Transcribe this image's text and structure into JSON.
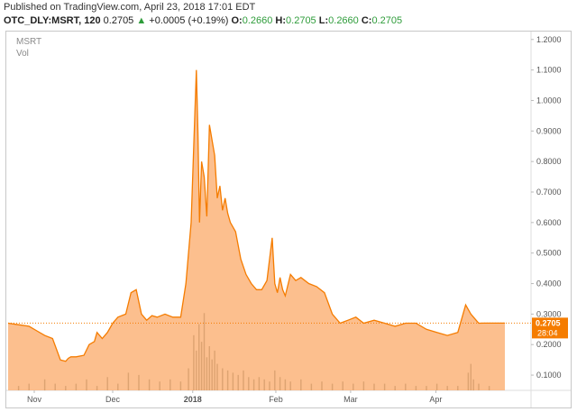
{
  "header": {
    "published": "Published on TradingView.com, April 23, 2018 17:01 EDT",
    "symbol": "OTC_DLY:MSRT, 120",
    "price": "0.2705",
    "change_arrow": "▲",
    "change": "+0.0005 (+0.19%)",
    "o_label": "O:",
    "o_value": "0.2660",
    "h_label": "H:",
    "h_value": "0.2705",
    "l_label": "L:",
    "l_value": "0.2660",
    "c_label": "C:",
    "c_value": "0.2705"
  },
  "legend": {
    "name": "MSRT",
    "vol": "Vol"
  },
  "colors": {
    "line": "#f57c00",
    "fill": "#fbb47a",
    "vol": "#d9a06e",
    "positive": "#2e9c3a",
    "tag_bg": "#f57c00",
    "axis_text": "#555555"
  },
  "chart_data": {
    "type": "area",
    "title": "",
    "ylim": [
      0.05,
      1.22
    ],
    "y_ticks": [
      "1.2000",
      "1.1000",
      "1.0000",
      "0.9000",
      "0.8000",
      "0.7000",
      "0.6000",
      "0.5000",
      "0.4000",
      "0.3000",
      "0.2000",
      "0.1000"
    ],
    "x_labels": [
      {
        "label": "Nov",
        "x": 0.05
      },
      {
        "label": "Dec",
        "x": 0.2
      },
      {
        "label": "2018",
        "x": 0.353
      },
      {
        "label": "Feb",
        "x": 0.512
      },
      {
        "label": "Mar",
        "x": 0.655
      },
      {
        "label": "Apr",
        "x": 0.818
      }
    ],
    "last_price": "0.2705",
    "last_value": 0.2705,
    "countdown": "28:04",
    "series": [
      {
        "x": [
          0,
          0.02,
          0.04,
          0.055,
          0.07,
          0.085,
          0.1,
          0.11,
          0.115,
          0.12,
          0.13,
          0.145,
          0.155,
          0.165,
          0.17,
          0.18,
          0.19,
          0.2,
          0.21,
          0.225,
          0.235,
          0.245,
          0.255,
          0.265,
          0.275,
          0.285,
          0.3,
          0.315,
          0.33,
          0.34,
          0.35,
          0.355,
          0.36,
          0.363,
          0.366,
          0.37,
          0.375,
          0.38,
          0.385,
          0.39,
          0.395,
          0.4,
          0.405,
          0.41,
          0.415,
          0.42,
          0.425,
          0.435,
          0.445,
          0.455,
          0.465,
          0.475,
          0.485,
          0.495,
          0.505,
          0.51,
          0.515,
          0.52,
          0.525,
          0.53,
          0.54,
          0.55,
          0.56,
          0.575,
          0.59,
          0.605,
          0.62,
          0.635,
          0.65,
          0.665,
          0.68,
          0.7,
          0.72,
          0.74,
          0.76,
          0.78,
          0.8,
          0.82,
          0.84,
          0.86,
          0.875,
          0.885,
          0.89,
          0.895,
          0.9,
          0.91,
          0.93,
          0.95
        ],
        "values": [
          0.27,
          0.265,
          0.26,
          0.245,
          0.23,
          0.22,
          0.15,
          0.145,
          0.155,
          0.16,
          0.16,
          0.165,
          0.2,
          0.21,
          0.24,
          0.22,
          0.24,
          0.27,
          0.29,
          0.3,
          0.37,
          0.38,
          0.3,
          0.28,
          0.295,
          0.29,
          0.3,
          0.29,
          0.29,
          0.4,
          0.6,
          0.85,
          1.1,
          0.9,
          0.6,
          0.8,
          0.75,
          0.62,
          0.92,
          0.87,
          0.82,
          0.68,
          0.72,
          0.64,
          0.68,
          0.63,
          0.6,
          0.57,
          0.48,
          0.43,
          0.4,
          0.38,
          0.38,
          0.41,
          0.55,
          0.4,
          0.37,
          0.42,
          0.38,
          0.36,
          0.43,
          0.41,
          0.42,
          0.4,
          0.39,
          0.37,
          0.3,
          0.27,
          0.28,
          0.29,
          0.27,
          0.28,
          0.27,
          0.26,
          0.27,
          0.27,
          0.25,
          0.24,
          0.23,
          0.24,
          0.33,
          0.3,
          0.29,
          0.28,
          0.27,
          0.2705,
          0.2705,
          0.2705
        ]
      }
    ],
    "volume": {
      "x": [
        0.02,
        0.04,
        0.07,
        0.09,
        0.11,
        0.13,
        0.15,
        0.17,
        0.19,
        0.21,
        0.23,
        0.25,
        0.27,
        0.29,
        0.31,
        0.33,
        0.345,
        0.355,
        0.36,
        0.365,
        0.37,
        0.375,
        0.38,
        0.385,
        0.39,
        0.395,
        0.4,
        0.41,
        0.42,
        0.43,
        0.44,
        0.45,
        0.46,
        0.47,
        0.48,
        0.49,
        0.5,
        0.51,
        0.52,
        0.53,
        0.54,
        0.56,
        0.58,
        0.6,
        0.62,
        0.64,
        0.66,
        0.68,
        0.7,
        0.72,
        0.74,
        0.76,
        0.78,
        0.8,
        0.82,
        0.84,
        0.86,
        0.88,
        0.885,
        0.89,
        0.9,
        0.92
      ],
      "values": [
        0.02,
        0.03,
        0.05,
        0.03,
        0.02,
        0.03,
        0.05,
        0.02,
        0.06,
        0.03,
        0.08,
        0.07,
        0.05,
        0.04,
        0.05,
        0.04,
        0.1,
        0.25,
        0.18,
        0.3,
        0.22,
        0.35,
        0.15,
        0.2,
        0.14,
        0.18,
        0.12,
        0.1,
        0.09,
        0.08,
        0.07,
        0.09,
        0.06,
        0.05,
        0.06,
        0.05,
        0.04,
        0.09,
        0.06,
        0.05,
        0.04,
        0.05,
        0.03,
        0.04,
        0.03,
        0.04,
        0.03,
        0.04,
        0.03,
        0.03,
        0.02,
        0.03,
        0.02,
        0.02,
        0.03,
        0.02,
        0.02,
        0.08,
        0.12,
        0.05,
        0.03,
        0.02
      ],
      "max": 0.4
    }
  }
}
